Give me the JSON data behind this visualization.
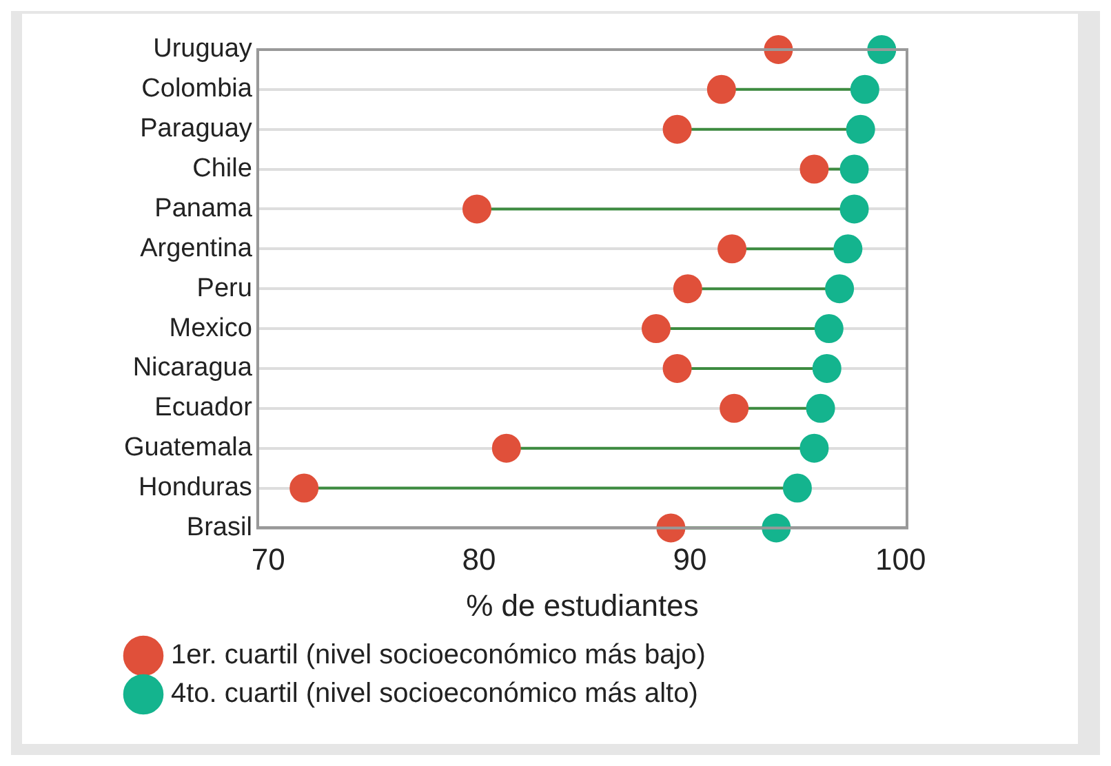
{
  "chart_data": {
    "type": "scatter",
    "orientation": "horizontal",
    "xlabel": "% de estudiantes",
    "categories": [
      "Uruguay",
      "Colombia",
      "Paraguay",
      "Chile",
      "Panama",
      "Argentina",
      "Peru",
      "Mexico",
      "Nicaragua",
      "Ecuador",
      "Guatemala",
      "Honduras",
      "Brasil"
    ],
    "series": [
      {
        "name": "1er. cuartil (nivel socioeconómico más bajo)",
        "color": "#e0503a",
        "values": [
          94.2,
          91.5,
          89.4,
          95.9,
          79.9,
          92.0,
          89.9,
          88.4,
          89.4,
          92.1,
          81.3,
          71.7,
          89.1
        ]
      },
      {
        "name": "4to. cuartil (nivel socioeconómico más alto)",
        "color": "#14b48e",
        "values": [
          99.1,
          98.3,
          98.1,
          97.8,
          97.8,
          97.5,
          97.1,
          96.6,
          96.5,
          96.2,
          95.9,
          95.1,
          94.1
        ]
      }
    ],
    "xlim": [
      69.5,
      100.3
    ],
    "xticks": [
      70,
      80,
      90,
      100
    ],
    "grid": "y",
    "legend": "bottom",
    "marker": "circle"
  }
}
